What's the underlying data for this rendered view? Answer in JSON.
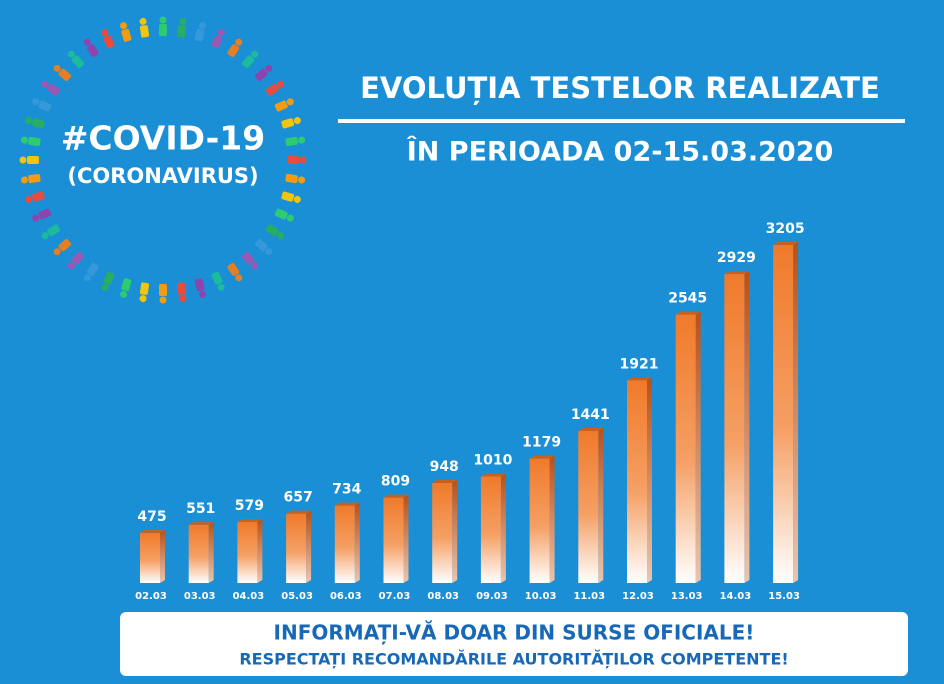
{
  "chart_data": {
    "type": "bar",
    "title": "EVOLUȚIA TESTELOR REALIZATE",
    "subtitle": "ÎN PERIOADA 02-15.03.2020",
    "badge": [
      "#COVID-19",
      "(CORONAVIRUS)"
    ],
    "footer": [
      "INFORMAȚI-VĂ DOAR DIN SURSE OFICIALE!",
      "RESPECTAȚI RECOMANDĂRILE AUTORITĂȚILOR COMPETENTE!"
    ],
    "categories": [
      "02.03",
      "03.03",
      "04.03",
      "05.03",
      "06.03",
      "07.03",
      "08.03",
      "09.03",
      "10.03",
      "11.03",
      "12.03",
      "13.03",
      "14.03",
      "15.03"
    ],
    "values": [
      475,
      551,
      579,
      657,
      734,
      809,
      948,
      1010,
      1179,
      1441,
      1921,
      2545,
      2929,
      3205
    ],
    "color": "#f07a2a"
  }
}
